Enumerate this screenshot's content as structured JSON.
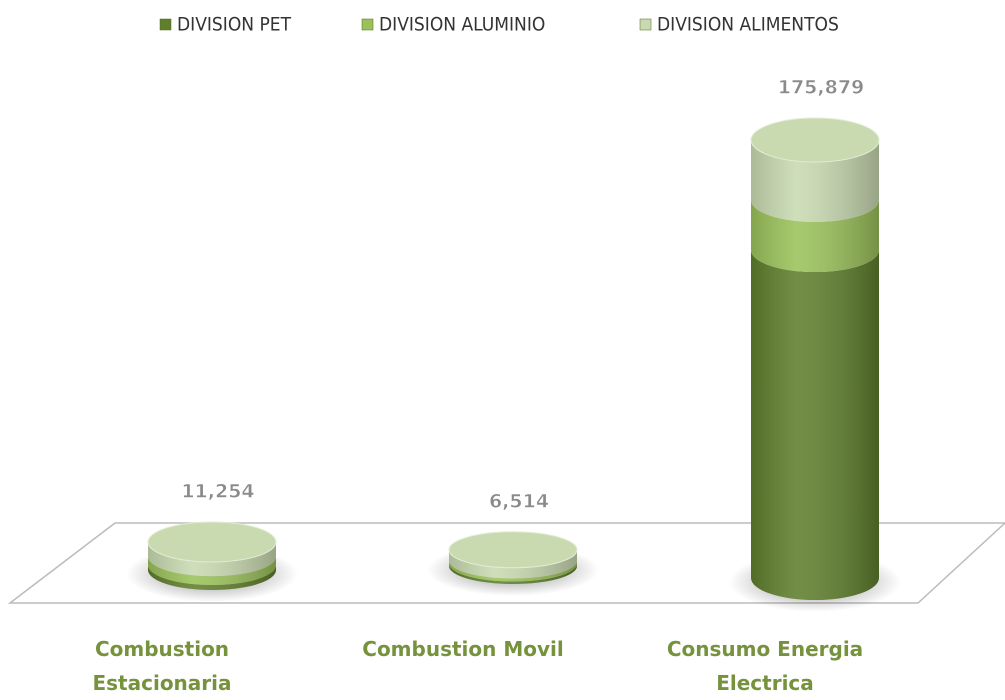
{
  "chart_data": {
    "type": "bar3d-stacked",
    "categories": [
      "Combustion Estacionaria",
      "Combustion Movil",
      "Consumo Energia Electrica"
    ],
    "series": [
      {
        "name": "DIVISION PET",
        "color": "#5f7f2d",
        "values": [
          2000,
          1000,
          131700
        ]
      },
      {
        "name": "DIVISION ALUMINIO",
        "color": "#9bc25a",
        "values": [
          3500,
          1200,
          20100
        ]
      },
      {
        "name": "DIVISION ALIMENTOS",
        "color": "#c9dab1",
        "values": [
          5754,
          4314,
          24079
        ]
      }
    ],
    "totals": [
      11254,
      6514,
      175879
    ],
    "total_labels": [
      "11,254",
      "6,514",
      "175,879"
    ],
    "legend": "top"
  }
}
